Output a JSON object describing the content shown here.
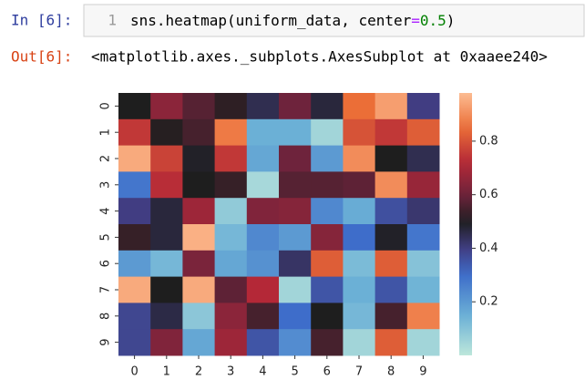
{
  "cell": {
    "prompt_in": "In [6]:",
    "line_number": 1,
    "code": [
      "sns.heatmap(uniform_data, center",
      "=",
      "0.5",
      ")"
    ],
    "prompt_out": "Out[6]:",
    "output": "<matplotlib.axes._subplots.AxesSubplot at 0xaaee240>"
  },
  "chart_data": {
    "type": "heatmap",
    "x": [
      0,
      1,
      2,
      3,
      4,
      5,
      6,
      7,
      8,
      9
    ],
    "y": [
      0,
      1,
      2,
      3,
      4,
      5,
      6,
      7,
      8,
      9
    ],
    "values": [
      [
        0.5,
        0.65,
        0.57,
        0.52,
        0.45,
        0.6,
        0.47,
        0.85,
        0.93,
        0.4
      ],
      [
        0.75,
        0.51,
        0.55,
        0.87,
        0.15,
        0.15,
        0.05,
        0.8,
        0.75,
        0.82
      ],
      [
        0.95,
        0.77,
        0.49,
        0.75,
        0.17,
        0.6,
        0.2,
        0.9,
        0.5,
        0.45
      ],
      [
        0.28,
        0.73,
        0.5,
        0.53,
        0.04,
        0.57,
        0.57,
        0.58,
        0.9,
        0.67
      ],
      [
        0.4,
        0.47,
        0.68,
        0.08,
        0.63,
        0.64,
        0.24,
        0.16,
        0.36,
        0.42
      ],
      [
        0.53,
        0.47,
        0.96,
        0.13,
        0.24,
        0.2,
        0.64,
        0.3,
        0.49,
        0.28
      ],
      [
        0.2,
        0.13,
        0.62,
        0.17,
        0.22,
        0.43,
        0.82,
        0.12,
        0.82,
        0.1
      ],
      [
        0.95,
        0.5,
        0.95,
        0.58,
        0.72,
        0.05,
        0.35,
        0.15,
        0.35,
        0.14
      ],
      [
        0.38,
        0.46,
        0.09,
        0.65,
        0.55,
        0.3,
        0.5,
        0.13,
        0.55,
        0.88
      ],
      [
        0.38,
        0.63,
        0.17,
        0.68,
        0.35,
        0.23,
        0.55,
        0.05,
        0.82,
        0.05
      ]
    ],
    "center": 0.5,
    "zlim": [
      0.0,
      0.98
    ],
    "zticks": [
      0.2,
      0.4,
      0.6,
      0.8
    ],
    "colormap": "icefire"
  }
}
